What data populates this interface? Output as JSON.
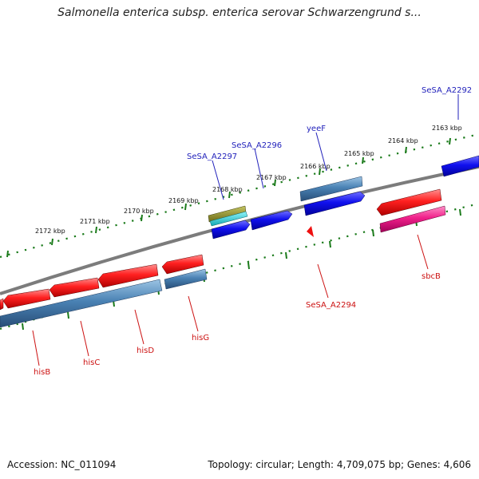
{
  "title": "Salmonella enterica subsp. enterica serovar Schwarzengrund s...",
  "scale": {
    "ticks": [
      "2163 kbp",
      "2164 kbp",
      "2165 kbp",
      "2166 kbp",
      "2167 kbp",
      "2168 kbp",
      "2169 kbp",
      "2170 kbp",
      "2171 kbp",
      "2172 kbp"
    ]
  },
  "genes_upper": [
    "SeSA_A2292",
    "yeeF",
    "SeSA_A2296",
    "SeSA_A2297"
  ],
  "genes_lower": [
    "hisB",
    "hisC",
    "hisD",
    "hisG",
    "SeSA_A2294",
    "sbcB"
  ],
  "footer": {
    "accession": "Accession: NC_011094",
    "summary": "Topology: circular; Length: 4,709,075 bp; Genes: 4,606"
  },
  "colors": {
    "backbone": "#808080",
    "red_gene": "#ff2020",
    "blue_gene": "#1010ee",
    "steel_gene": "#4a82b4",
    "pink_gene": "#f0208a",
    "olive_gene": "#8c8c28",
    "cyan_gene": "#20d8e0",
    "ruler": "#1a7a1a"
  }
}
